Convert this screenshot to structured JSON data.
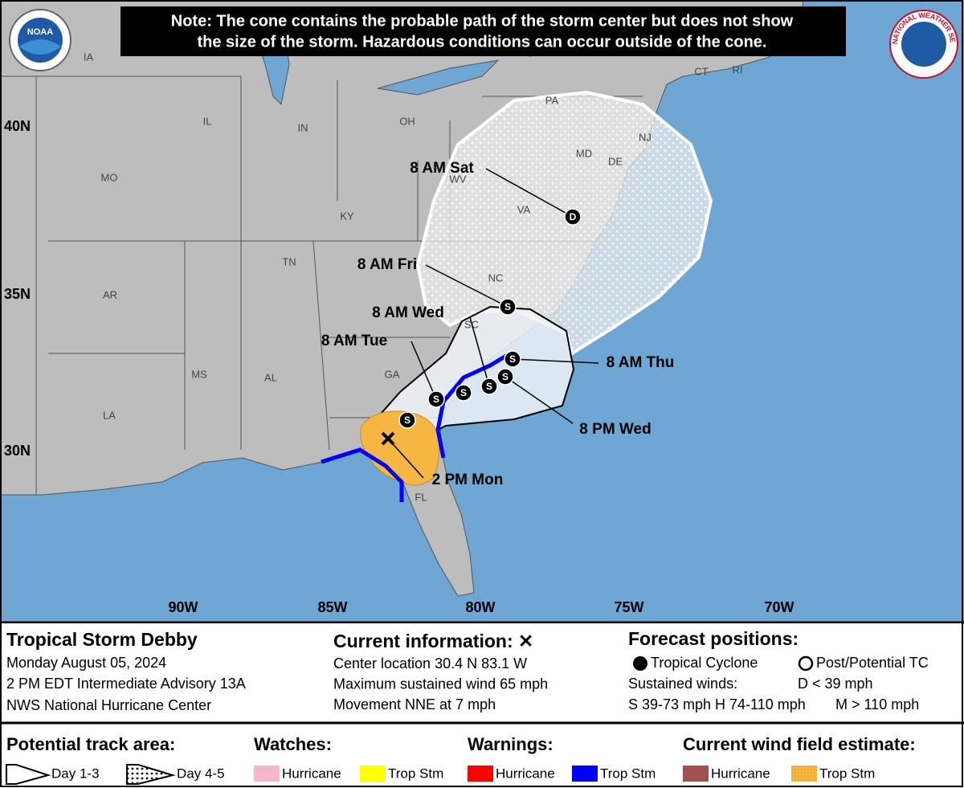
{
  "note": [
    "Note: The cone contains the probable path of the storm center but does not show",
    "the size of the storm. Hazardous conditions can occur outside of the cone."
  ],
  "logos": {
    "noaa": "NOAA",
    "nws": "NATIONAL WEATHER SERVICE"
  },
  "latitude_labels": [
    "40N",
    "35N",
    "30N"
  ],
  "longitude_labels": [
    "90W",
    "85W",
    "80W",
    "75W",
    "70W"
  ],
  "state_labels": [
    "IA",
    "IL",
    "IN",
    "OH",
    "PA",
    "MO",
    "KY",
    "WV",
    "VA",
    "MD",
    "DE",
    "NJ",
    "CT",
    "RI",
    "TN",
    "NC",
    "SC",
    "AR",
    "MS",
    "AL",
    "GA",
    "LA",
    "FL"
  ],
  "forecast_labels": [
    "8 AM Sat",
    "8 AM Fri",
    "8 AM Wed",
    "8 AM Tue",
    "8 AM Thu",
    "8 PM Wed",
    "2 PM Mon"
  ],
  "forecast_points": [
    "S",
    "S",
    "S",
    "S",
    "S",
    "S",
    "S",
    "D"
  ],
  "info": {
    "storm": {
      "title": "Tropical Storm Debby",
      "date": "Monday August 05, 2024",
      "advisory": "2 PM EDT Intermediate Advisory 13A",
      "center": "NWS National Hurricane Center"
    },
    "current": {
      "title": "Current information: ✕",
      "lines": [
        "Center location 30.4 N 83.1 W",
        "Maximum sustained wind 65 mph",
        "Movement NNE at 7 mph"
      ]
    },
    "forecast": {
      "title": "Forecast positions:",
      "tropical": "Tropical Cyclone",
      "post": "Post/Potential TC",
      "winds": "Sustained winds:",
      "d": "D < 39 mph",
      "s": "S 39-73 mph",
      "h": "H 74-110 mph",
      "m": "M > 110 mph"
    }
  },
  "legend": {
    "track_title": "Potential track area:",
    "day13": "Day 1-3",
    "day45": "Day 4-5",
    "watches_title": "Watches:",
    "watches": [
      "Hurricane",
      "Trop Stm"
    ],
    "warnings_title": "Warnings:",
    "warnings": [
      "Hurricane",
      "Trop Stm"
    ],
    "wind_title": "Current wind field estimate:",
    "wind": [
      "Hurricane",
      "Trop Stm"
    ]
  }
}
